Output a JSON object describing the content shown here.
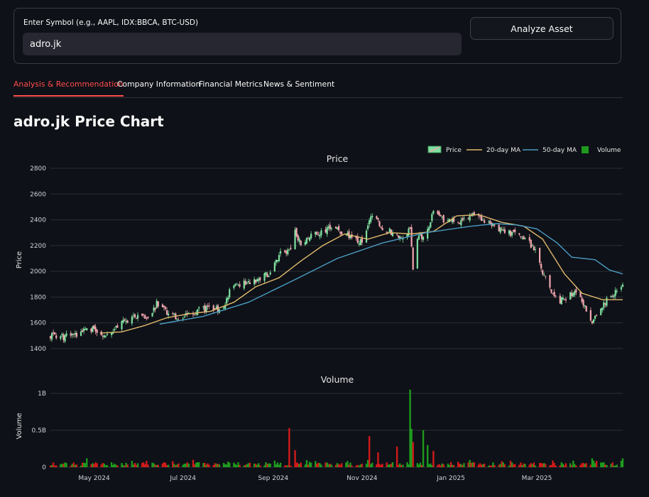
{
  "form": {
    "symbol_label": "Enter Symbol (e.g., AAPL, IDX:BBCA, BTC-USD)",
    "symbol_value": "adro.jk",
    "analyze_label": "Analyze Asset"
  },
  "tabs": [
    {
      "label": "Analysis & Recommendation",
      "active": true
    },
    {
      "label": "Company Information",
      "active": false
    },
    {
      "label": "Financial Metrics",
      "active": false
    },
    {
      "label": "News & Sentiment",
      "active": false
    }
  ],
  "page_title": "adro.jk Price Chart",
  "colors": {
    "accent": "#ff4b4b",
    "up": "#7fe0a0",
    "down": "#f4a6b0",
    "ma20": "#e0b86c",
    "ma50": "#4a9cc4",
    "volume_up": "#1e9a1e",
    "volume_down": "#d11a1a"
  },
  "chart_data": [
    {
      "type": "candlestick",
      "title": "Price",
      "ylabel": "Price",
      "ylim": [
        1400,
        2800
      ],
      "yticks": [
        1400,
        1600,
        1800,
        2000,
        2200,
        2400,
        2600,
        2800
      ],
      "xlim": [
        "2024-04-01",
        "2025-04-29"
      ],
      "xticks": [
        {
          "date": "2024-05-01",
          "label": "May 2024"
        },
        {
          "date": "2024-07-01",
          "label": "Jul 2024"
        },
        {
          "date": "2024-09-01",
          "label": "Sep 2024"
        },
        {
          "date": "2024-11-01",
          "label": "Nov 2024"
        },
        {
          "date": "2025-01-01",
          "label": "Jan 2025"
        },
        {
          "date": "2025-03-01",
          "label": "Mar 2025"
        }
      ],
      "legend": [
        "Price",
        "20-day MA",
        "50-day MA",
        "Volume"
      ],
      "legend_position": "top-right",
      "grid": true,
      "close_points": [
        [
          "2024-04-01",
          1500
        ],
        [
          "2024-04-10",
          1490
        ],
        [
          "2024-04-20",
          1510
        ],
        [
          "2024-04-26",
          1560
        ],
        [
          "2024-05-03",
          1540
        ],
        [
          "2024-05-10",
          1500
        ],
        [
          "2024-05-17",
          1580
        ],
        [
          "2024-05-25",
          1630
        ],
        [
          "2024-06-01",
          1650
        ],
        [
          "2024-06-08",
          1620
        ],
        [
          "2024-06-13",
          1750
        ],
        [
          "2024-06-20",
          1680
        ],
        [
          "2024-06-28",
          1640
        ],
        [
          "2024-07-05",
          1660
        ],
        [
          "2024-07-12",
          1700
        ],
        [
          "2024-07-20",
          1720
        ],
        [
          "2024-07-28",
          1690
        ],
        [
          "2024-08-03",
          1880
        ],
        [
          "2024-08-10",
          1900
        ],
        [
          "2024-08-17",
          1920
        ],
        [
          "2024-08-24",
          1950
        ],
        [
          "2024-08-31",
          2000
        ],
        [
          "2024-09-07",
          2180
        ],
        [
          "2024-09-12",
          2150
        ],
        [
          "2024-09-16",
          2300
        ],
        [
          "2024-09-21",
          2200
        ],
        [
          "2024-09-28",
          2290
        ],
        [
          "2024-10-05",
          2310
        ],
        [
          "2024-10-12",
          2340
        ],
        [
          "2024-10-19",
          2300
        ],
        [
          "2024-10-26",
          2240
        ],
        [
          "2024-11-02",
          2220
        ],
        [
          "2024-11-08",
          2450
        ],
        [
          "2024-11-15",
          2330
        ],
        [
          "2024-11-22",
          2300
        ],
        [
          "2024-11-29",
          2250
        ],
        [
          "2024-12-04",
          2330
        ],
        [
          "2024-12-06",
          2030
        ],
        [
          "2024-12-09",
          2270
        ],
        [
          "2024-12-14",
          2250
        ],
        [
          "2024-12-20",
          2480
        ],
        [
          "2024-12-27",
          2400
        ],
        [
          "2025-01-03",
          2380
        ],
        [
          "2025-01-10",
          2400
        ],
        [
          "2025-01-18",
          2450
        ],
        [
          "2025-01-25",
          2380
        ],
        [
          "2025-02-01",
          2350
        ],
        [
          "2025-02-08",
          2300
        ],
        [
          "2025-02-15",
          2290
        ],
        [
          "2025-02-22",
          2250
        ],
        [
          "2025-02-28",
          2150
        ],
        [
          "2025-03-05",
          2000
        ],
        [
          "2025-03-10",
          1860
        ],
        [
          "2025-03-16",
          1760
        ],
        [
          "2025-03-21",
          1800
        ],
        [
          "2025-03-28",
          1850
        ],
        [
          "2025-04-08",
          1610
        ],
        [
          "2025-04-14",
          1720
        ],
        [
          "2025-04-20",
          1810
        ],
        [
          "2025-04-26",
          1850
        ],
        [
          "2025-04-29",
          1880
        ]
      ],
      "ma20_points": [
        [
          "2024-05-05",
          1520
        ],
        [
          "2024-05-20",
          1530
        ],
        [
          "2024-06-05",
          1580
        ],
        [
          "2024-06-20",
          1640
        ],
        [
          "2024-07-05",
          1670
        ],
        [
          "2024-07-20",
          1690
        ],
        [
          "2024-08-05",
          1760
        ],
        [
          "2024-08-20",
          1880
        ],
        [
          "2024-09-05",
          1950
        ],
        [
          "2024-09-20",
          2080
        ],
        [
          "2024-10-05",
          2200
        ],
        [
          "2024-10-20",
          2290
        ],
        [
          "2024-11-05",
          2250
        ],
        [
          "2024-11-20",
          2300
        ],
        [
          "2024-12-05",
          2290
        ],
        [
          "2024-12-20",
          2310
        ],
        [
          "2025-01-05",
          2430
        ],
        [
          "2025-01-20",
          2440
        ],
        [
          "2025-02-05",
          2380
        ],
        [
          "2025-02-20",
          2350
        ],
        [
          "2025-03-05",
          2250
        ],
        [
          "2025-03-20",
          1980
        ],
        [
          "2025-04-01",
          1830
        ],
        [
          "2025-04-15",
          1780
        ],
        [
          "2025-04-29",
          1780
        ]
      ],
      "ma50_points": [
        [
          "2024-06-15",
          1590
        ],
        [
          "2024-07-15",
          1650
        ],
        [
          "2024-08-15",
          1760
        ],
        [
          "2024-09-15",
          1930
        ],
        [
          "2024-10-15",
          2100
        ],
        [
          "2024-11-15",
          2220
        ],
        [
          "2024-12-15",
          2300
        ],
        [
          "2025-01-15",
          2350
        ],
        [
          "2025-02-01",
          2370
        ],
        [
          "2025-02-15",
          2360
        ],
        [
          "2025-03-01",
          2330
        ],
        [
          "2025-03-15",
          2220
        ],
        [
          "2025-03-25",
          2110
        ],
        [
          "2025-04-10",
          2090
        ],
        [
          "2025-04-20",
          2010
        ],
        [
          "2025-04-29",
          1980
        ]
      ]
    },
    {
      "type": "bar",
      "title": "Volume",
      "ylabel": "Volume",
      "ylim": [
        0,
        1000000000.0
      ],
      "yticks": [
        {
          "value": 0,
          "label": "0"
        },
        {
          "value": 500000000.0,
          "label": "0.5B"
        },
        {
          "value": 1000000000.0,
          "label": "1B"
        }
      ],
      "spikes": [
        [
          "2024-04-26",
          120000000.0,
          "up"
        ],
        [
          "2024-09-12",
          530000000.0,
          "down"
        ],
        [
          "2024-09-16",
          230000000.0,
          "down"
        ],
        [
          "2024-11-06",
          420000000.0,
          "down"
        ],
        [
          "2024-11-12",
          200000000.0,
          "down"
        ],
        [
          "2024-11-25",
          280000000.0,
          "down"
        ],
        [
          "2024-12-04",
          1050000000.0,
          "up"
        ],
        [
          "2024-12-05",
          520000000.0,
          "up"
        ],
        [
          "2024-12-06",
          340000000.0,
          "down"
        ],
        [
          "2024-12-13",
          500000000.0,
          "up"
        ],
        [
          "2024-12-16",
          300000000.0,
          "up"
        ],
        [
          "2024-12-20",
          220000000.0,
          "down"
        ],
        [
          "2025-04-08",
          120000000.0,
          "up"
        ],
        [
          "2025-04-29",
          120000000.0,
          "up"
        ]
      ],
      "typical_range": [
        20000000.0,
        100000000.0
      ]
    }
  ]
}
